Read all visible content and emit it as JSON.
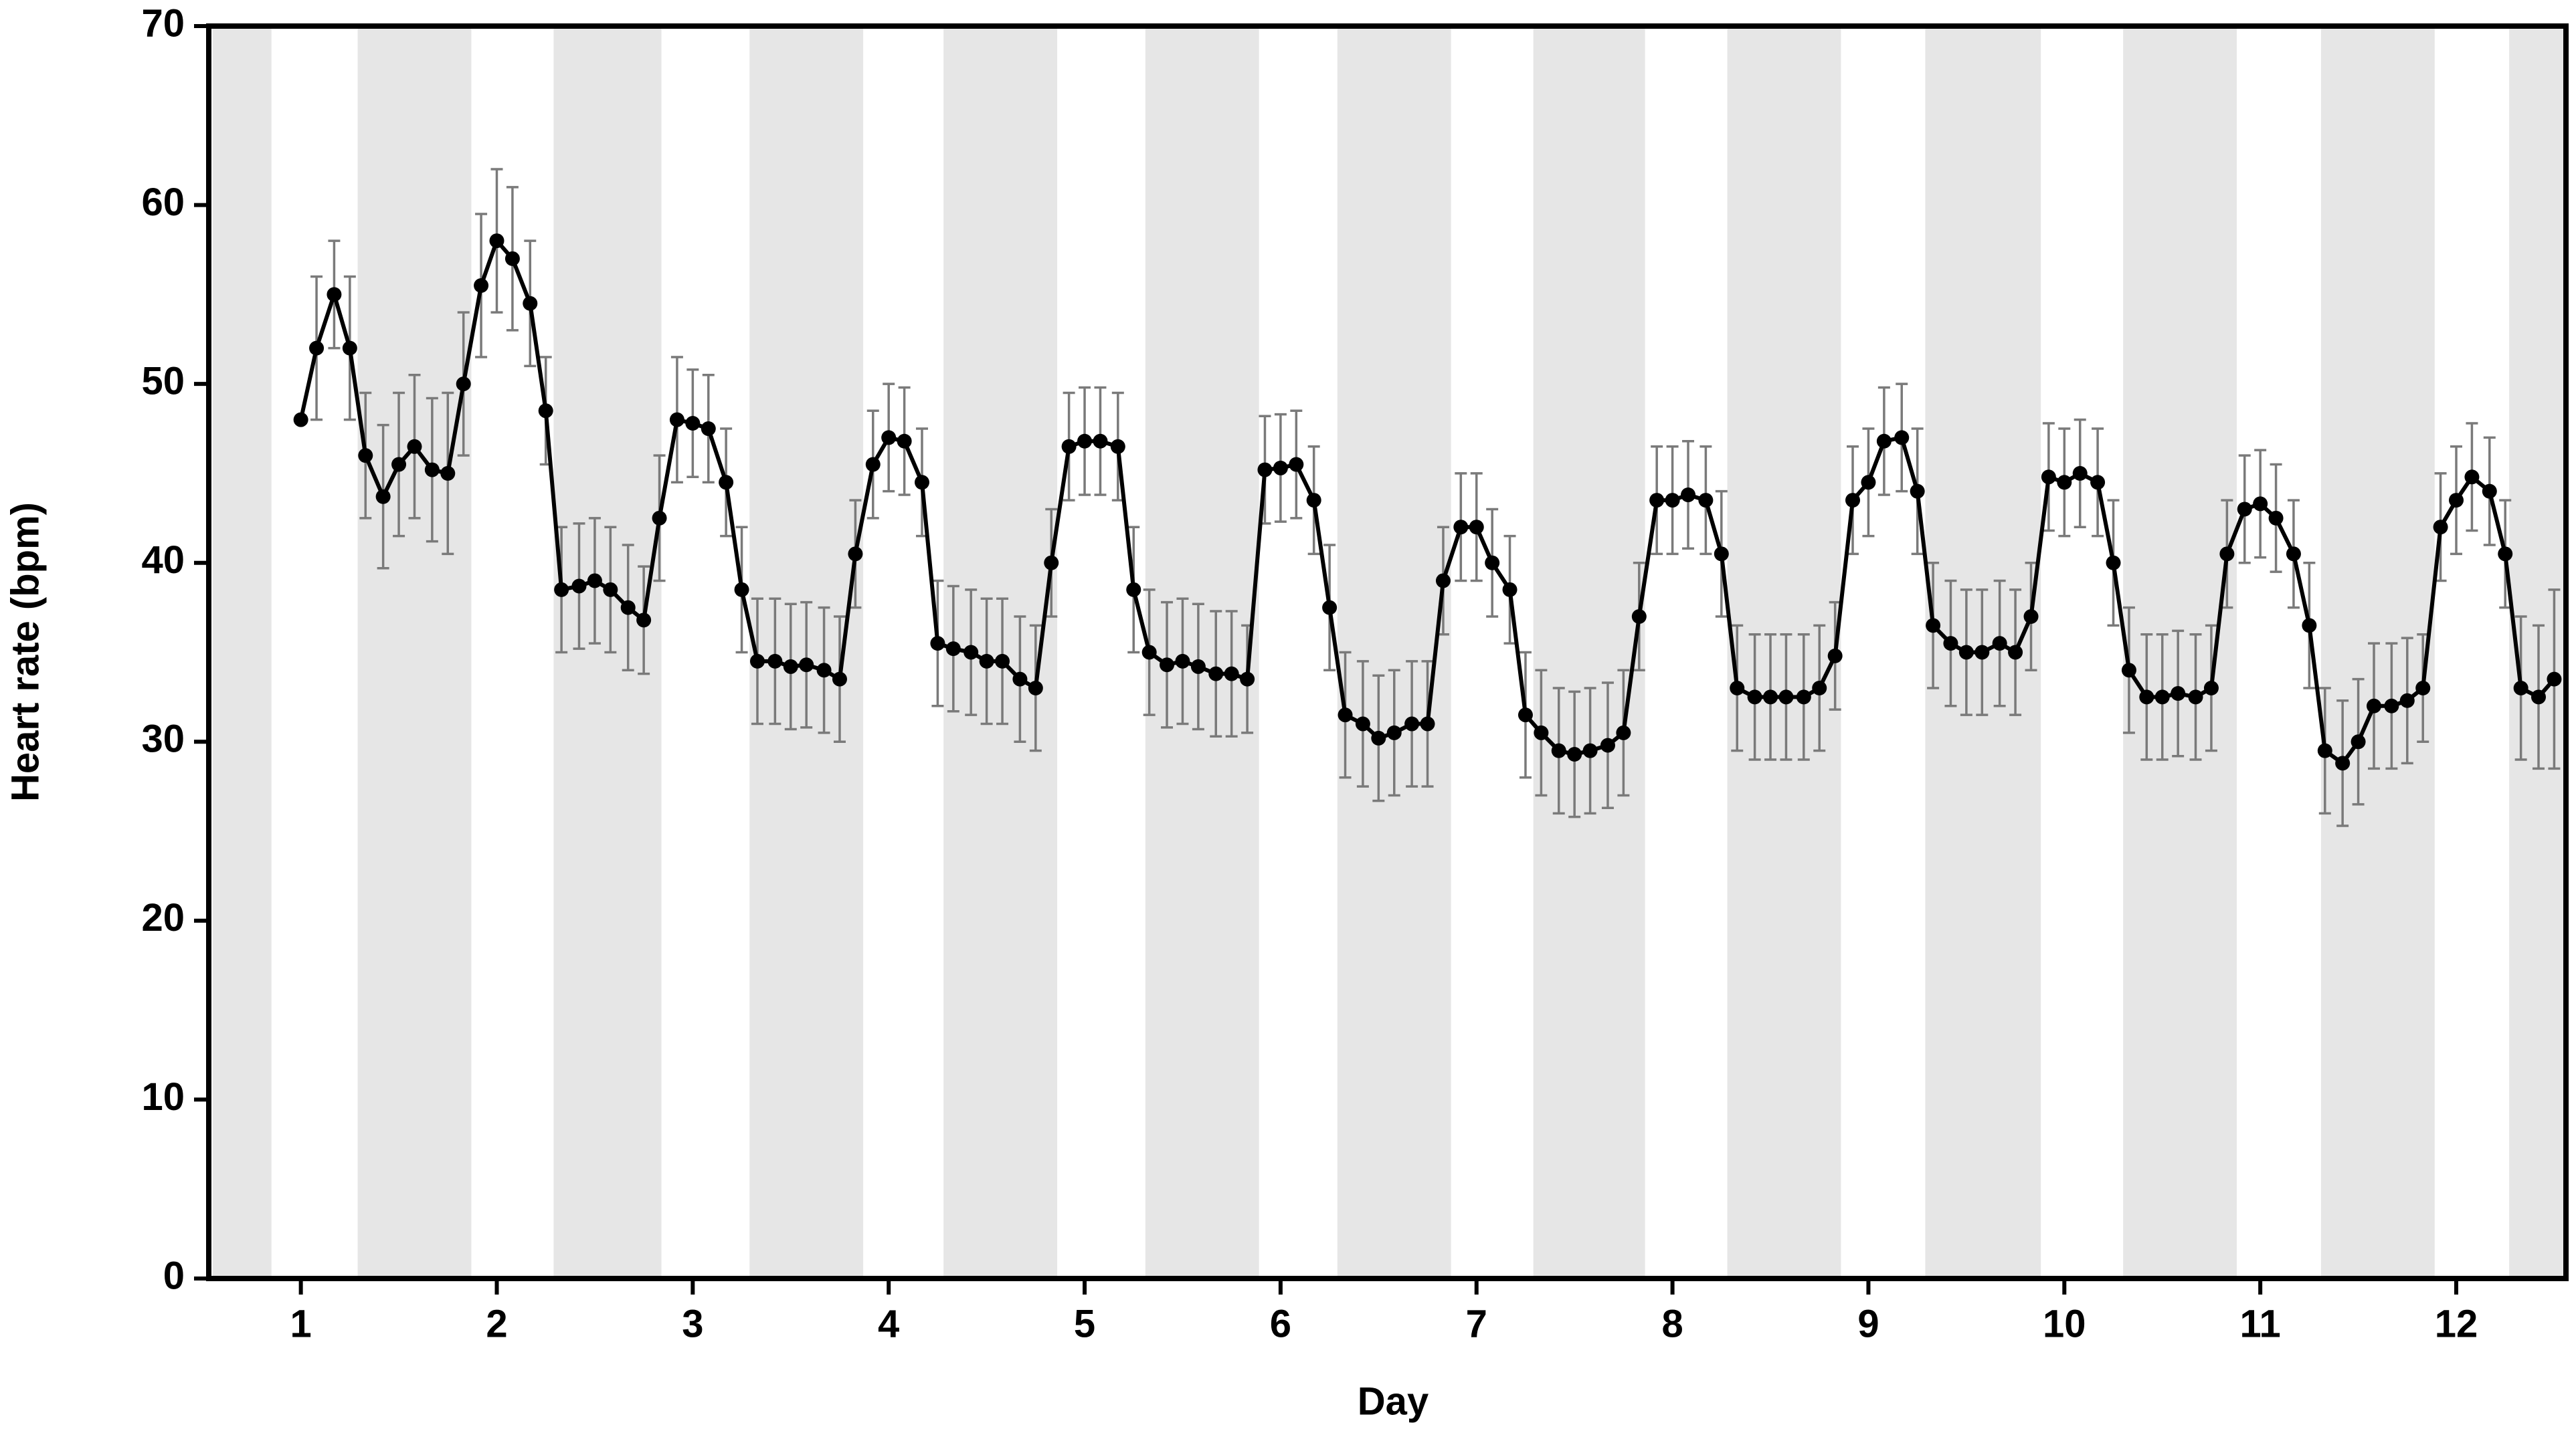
{
  "chart_data": {
    "type": "line",
    "xlabel": "Day",
    "ylabel": "Heart rate (bpm)",
    "xlim": [
      0.53,
      12.56
    ],
    "xticks": [
      1,
      2,
      3,
      4,
      5,
      6,
      7,
      8,
      9,
      10,
      11,
      12
    ],
    "ylim": [
      0,
      70
    ],
    "yticks": [
      0,
      10,
      20,
      30,
      40,
      50,
      60,
      70
    ],
    "grid": false,
    "color": "#000000",
    "error_color": "#7a7a7a",
    "shade_color": "#e6e6e6",
    "shaded_intervals": [
      [
        0.55,
        0.85
      ],
      [
        1.29,
        1.87
      ],
      [
        2.29,
        2.84
      ],
      [
        3.29,
        3.87
      ],
      [
        4.28,
        4.86
      ],
      [
        5.31,
        5.89
      ],
      [
        6.29,
        6.87
      ],
      [
        7.29,
        7.86
      ],
      [
        8.28,
        8.86
      ],
      [
        9.29,
        9.88
      ],
      [
        10.3,
        10.88
      ],
      [
        11.31,
        11.89
      ],
      [
        12.27,
        12.56
      ]
    ],
    "x": [
      1.0,
      1.08,
      1.17,
      1.25,
      1.33,
      1.42,
      1.5,
      1.58,
      1.67,
      1.75,
      1.83,
      1.92,
      2.0,
      2.08,
      2.17,
      2.25,
      2.33,
      2.42,
      2.5,
      2.58,
      2.67,
      2.75,
      2.83,
      2.92,
      3.0,
      3.08,
      3.17,
      3.25,
      3.33,
      3.42,
      3.5,
      3.58,
      3.67,
      3.75,
      3.83,
      3.92,
      4.0,
      4.08,
      4.17,
      4.25,
      4.33,
      4.42,
      4.5,
      4.58,
      4.67,
      4.75,
      4.83,
      4.92,
      5.0,
      5.08,
      5.17,
      5.25,
      5.33,
      5.42,
      5.5,
      5.58,
      5.67,
      5.75,
      5.83,
      5.92,
      6.0,
      6.08,
      6.17,
      6.25,
      6.33,
      6.42,
      6.5,
      6.58,
      6.67,
      6.75,
      6.83,
      6.92,
      7.0,
      7.08,
      7.17,
      7.25,
      7.33,
      7.42,
      7.5,
      7.58,
      7.67,
      7.75,
      7.83,
      7.92,
      8.0,
      8.08,
      8.17,
      8.25,
      8.33,
      8.42,
      8.5,
      8.58,
      8.67,
      8.75,
      8.83,
      8.92,
      9.0,
      9.08,
      9.17,
      9.25,
      9.33,
      9.42,
      9.5,
      9.58,
      9.67,
      9.75,
      9.83,
      9.92,
      10.0,
      10.08,
      10.17,
      10.25,
      10.33,
      10.42,
      10.5,
      10.58,
      10.67,
      10.75,
      10.83,
      10.92,
      11.0,
      11.08,
      11.17,
      11.25,
      11.33,
      11.42,
      11.5,
      11.58,
      11.67,
      11.75,
      11.83,
      11.92,
      12.0,
      12.08,
      12.17,
      12.25,
      12.33,
      12.42,
      12.5
    ],
    "values": [
      48,
      52,
      55,
      52,
      46,
      43.7,
      45.5,
      46.5,
      45.2,
      45,
      50,
      55.5,
      58,
      57,
      54.5,
      48.5,
      38.5,
      38.7,
      39,
      38.5,
      37.5,
      36.8,
      42.5,
      48,
      47.8,
      47.5,
      44.5,
      38.5,
      34.5,
      34.5,
      34.2,
      34.3,
      34,
      33.5,
      40.5,
      45.5,
      47,
      46.8,
      44.5,
      35.5,
      35.2,
      35,
      34.5,
      34.5,
      33.5,
      33,
      40,
      46.5,
      46.8,
      46.8,
      46.5,
      38.5,
      35,
      34.3,
      34.5,
      34.2,
      33.8,
      33.8,
      33.5,
      45.2,
      45.3,
      45.5,
      43.5,
      37.5,
      31.5,
      31,
      30.2,
      30.5,
      31,
      31,
      39,
      42,
      42,
      40,
      38.5,
      31.5,
      30.5,
      29.5,
      29.3,
      29.5,
      29.8,
      30.5,
      37,
      43.5,
      43.5,
      43.8,
      43.5,
      40.5,
      33,
      32.5,
      32.5,
      32.5,
      32.5,
      33,
      34.8,
      43.5,
      44.5,
      46.8,
      47,
      44,
      36.5,
      35.5,
      35,
      35,
      35.5,
      35,
      37,
      44.8,
      44.5,
      45,
      44.5,
      40,
      34,
      32.5,
      32.5,
      32.7,
      32.5,
      33,
      40.5,
      43,
      43.3,
      42.5,
      40.5,
      36.5,
      29.5,
      28.8,
      30,
      32,
      32,
      32.3,
      33,
      42,
      43.5,
      44.8,
      44,
      40.5,
      33,
      32.5,
      33.5
    ],
    "errors": [
      0,
      4,
      3,
      4,
      3.5,
      4,
      4,
      4,
      4,
      4.5,
      4,
      4,
      4,
      4,
      3.5,
      3,
      3.5,
      3.5,
      3.5,
      3.5,
      3.5,
      3,
      3.5,
      3.5,
      3,
      3,
      3,
      3.5,
      3.5,
      3.5,
      3.5,
      3.5,
      3.5,
      3.5,
      3,
      3,
      3,
      3,
      3,
      3.5,
      3.5,
      3.5,
      3.5,
      3.5,
      3.5,
      3.5,
      3,
      3,
      3,
      3,
      3,
      3.5,
      3.5,
      3.5,
      3.5,
      3.5,
      3.5,
      3.5,
      3,
      3,
      3,
      3,
      3,
      3.5,
      3.5,
      3.5,
      3.5,
      3.5,
      3.5,
      3.5,
      3,
      3,
      3,
      3,
      3,
      3.5,
      3.5,
      3.5,
      3.5,
      3.5,
      3.5,
      3.5,
      3,
      3,
      3,
      3,
      3,
      3.5,
      3.5,
      3.5,
      3.5,
      3.5,
      3.5,
      3.5,
      3,
      3,
      3,
      3,
      3,
      3.5,
      3.5,
      3.5,
      3.5,
      3.5,
      3.5,
      3.5,
      3,
      3,
      3,
      3,
      3,
      3.5,
      3.5,
      3.5,
      3.5,
      3.5,
      3.5,
      3.5,
      3,
      3,
      3,
      3,
      3,
      3.5,
      3.5,
      3.5,
      3.5,
      3.5,
      3.5,
      3.5,
      3,
      3,
      3,
      3,
      3,
      3,
      4,
      4,
      5
    ]
  }
}
